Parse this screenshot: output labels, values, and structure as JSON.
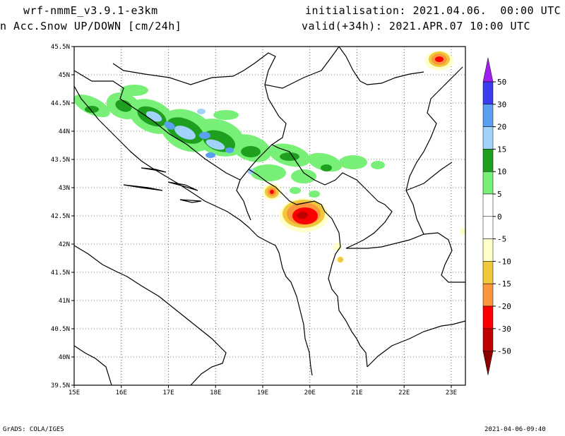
{
  "header": {
    "model": "wrf-nmmE_v3.9.1-e3km",
    "field": "n Acc.Snow UP/DOWN [cm/24h]",
    "initialisation": "initialisation: 2021.04.06.  00:00 UTC",
    "valid": "valid(+34h): 2021.APR.07 10:00 UTC"
  },
  "footer": {
    "credit": "GrADS: COLA/IGES",
    "timestamp": "2021-04-06-09:40"
  },
  "map": {
    "lat_labels": [
      "45.5N",
      "45N",
      "44.5N",
      "44N",
      "43.5N",
      "43N",
      "42.5N",
      "42N",
      "41.5N",
      "41N",
      "40.5N",
      "40N",
      "39.5N"
    ],
    "lon_labels": [
      "15E",
      "16E",
      "17E",
      "18E",
      "19E",
      "20E",
      "21E",
      "22E",
      "23E"
    ],
    "extent": {
      "lon": [
        15,
        23.3
      ],
      "lat": [
        39.5,
        45.5
      ]
    }
  },
  "legend": {
    "labels": [
      "50",
      "30",
      "20",
      "15",
      "10",
      "5",
      "0",
      "-5",
      "-10",
      "-15",
      "-20",
      "-30",
      "-50"
    ],
    "colors": {
      "top_arrow": "#a020f0",
      "b50_30": "#3c3cf0",
      "b30_20": "#5aa0f0",
      "b20_15": "#a0d2fa",
      "b15_10": "#1ea01e",
      "b10_5": "#78f078",
      "b5_m5": "#ffffff",
      "bm5_m10": "#ffffc8",
      "bm10_m15": "#f0c83c",
      "bm15_m20": "#fa963c",
      "bm20_m30": "#fa0000",
      "bm30_m50": "#c00000",
      "bottom_arrow": "#8c0000"
    }
  }
}
